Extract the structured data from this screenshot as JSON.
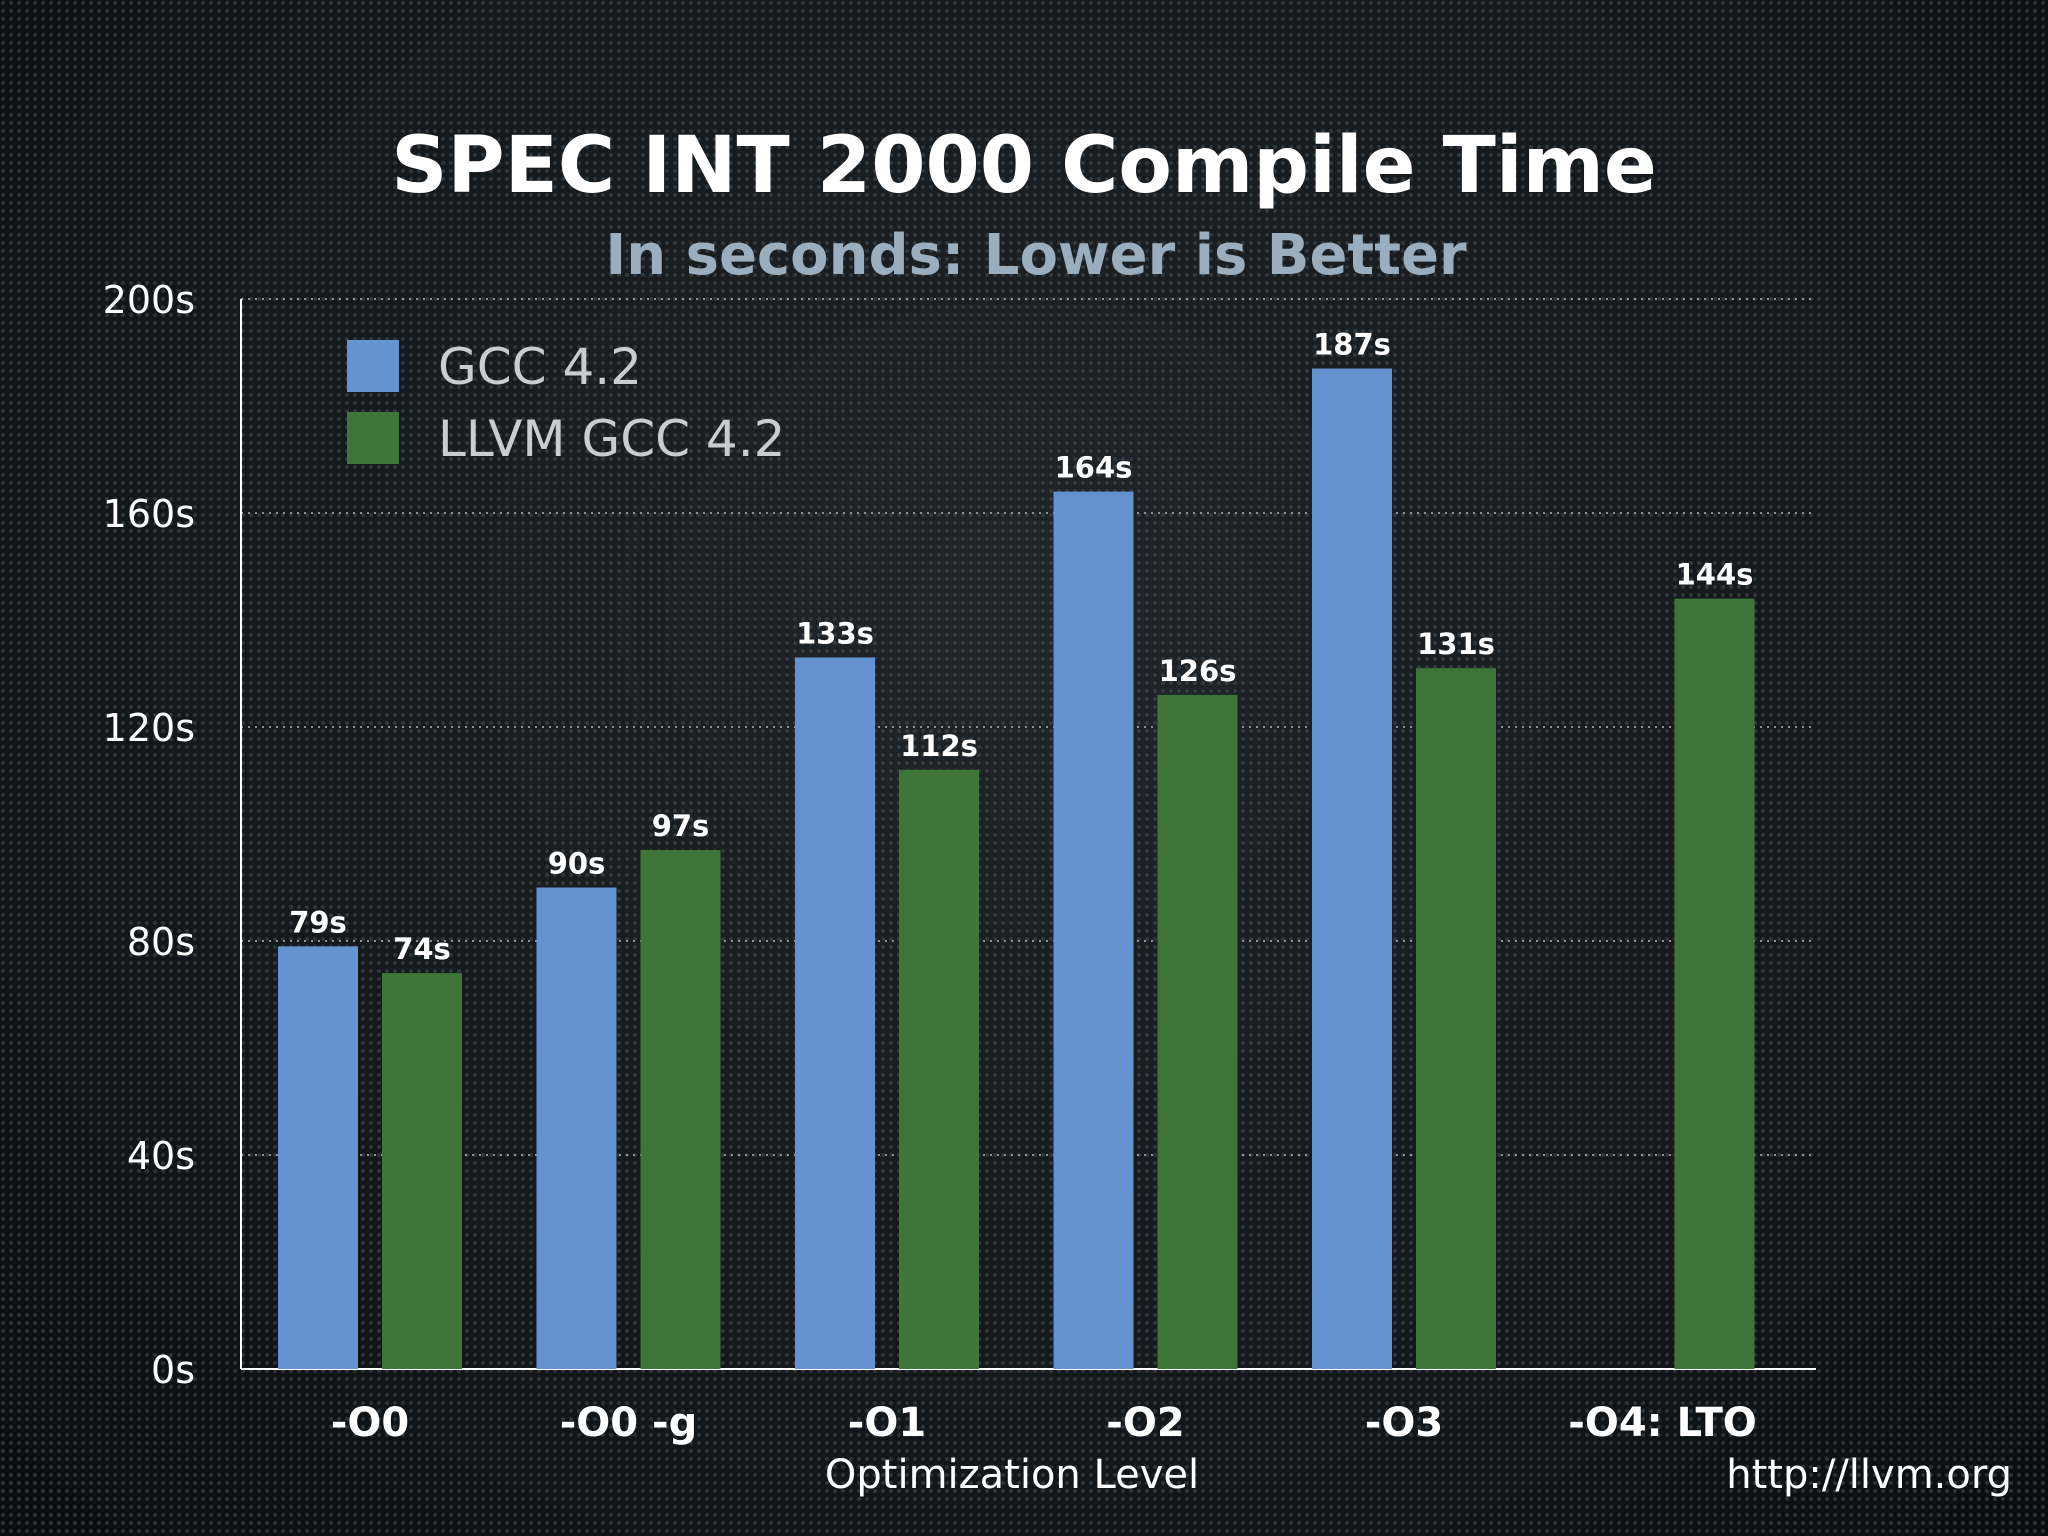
{
  "chart_data": {
    "type": "bar",
    "title": "SPEC INT 2000 Compile Time",
    "subtitle": "In seconds: Lower is Better",
    "xlabel": "Optimization Level",
    "ylabel": "",
    "ylim": [
      0,
      200
    ],
    "yticks": [
      0,
      40,
      80,
      120,
      160,
      200
    ],
    "ytick_labels": [
      "0s",
      "40s",
      "80s",
      "120s",
      "160s",
      "200s"
    ],
    "categories": [
      "-O0",
      "-O0 -g",
      "-O1",
      "-O2",
      "-O3",
      "-O4: LTO"
    ],
    "series": [
      {
        "name": "GCC 4.2",
        "color": "#6592d0",
        "values": [
          79,
          90,
          133,
          164,
          187,
          null
        ],
        "labels": [
          "79s",
          "90s",
          "133s",
          "164s",
          "187s",
          ""
        ]
      },
      {
        "name": "LLVM GCC 4.2",
        "color": "#3f7538",
        "values": [
          74,
          97,
          112,
          126,
          131,
          144
        ],
        "labels": [
          "74s",
          "97s",
          "112s",
          "126s",
          "131s",
          "144s"
        ]
      }
    ],
    "grid": true,
    "grid_style": "dotted",
    "legend_position": "top-left"
  },
  "footer": {
    "url": "http://llvm.org"
  }
}
